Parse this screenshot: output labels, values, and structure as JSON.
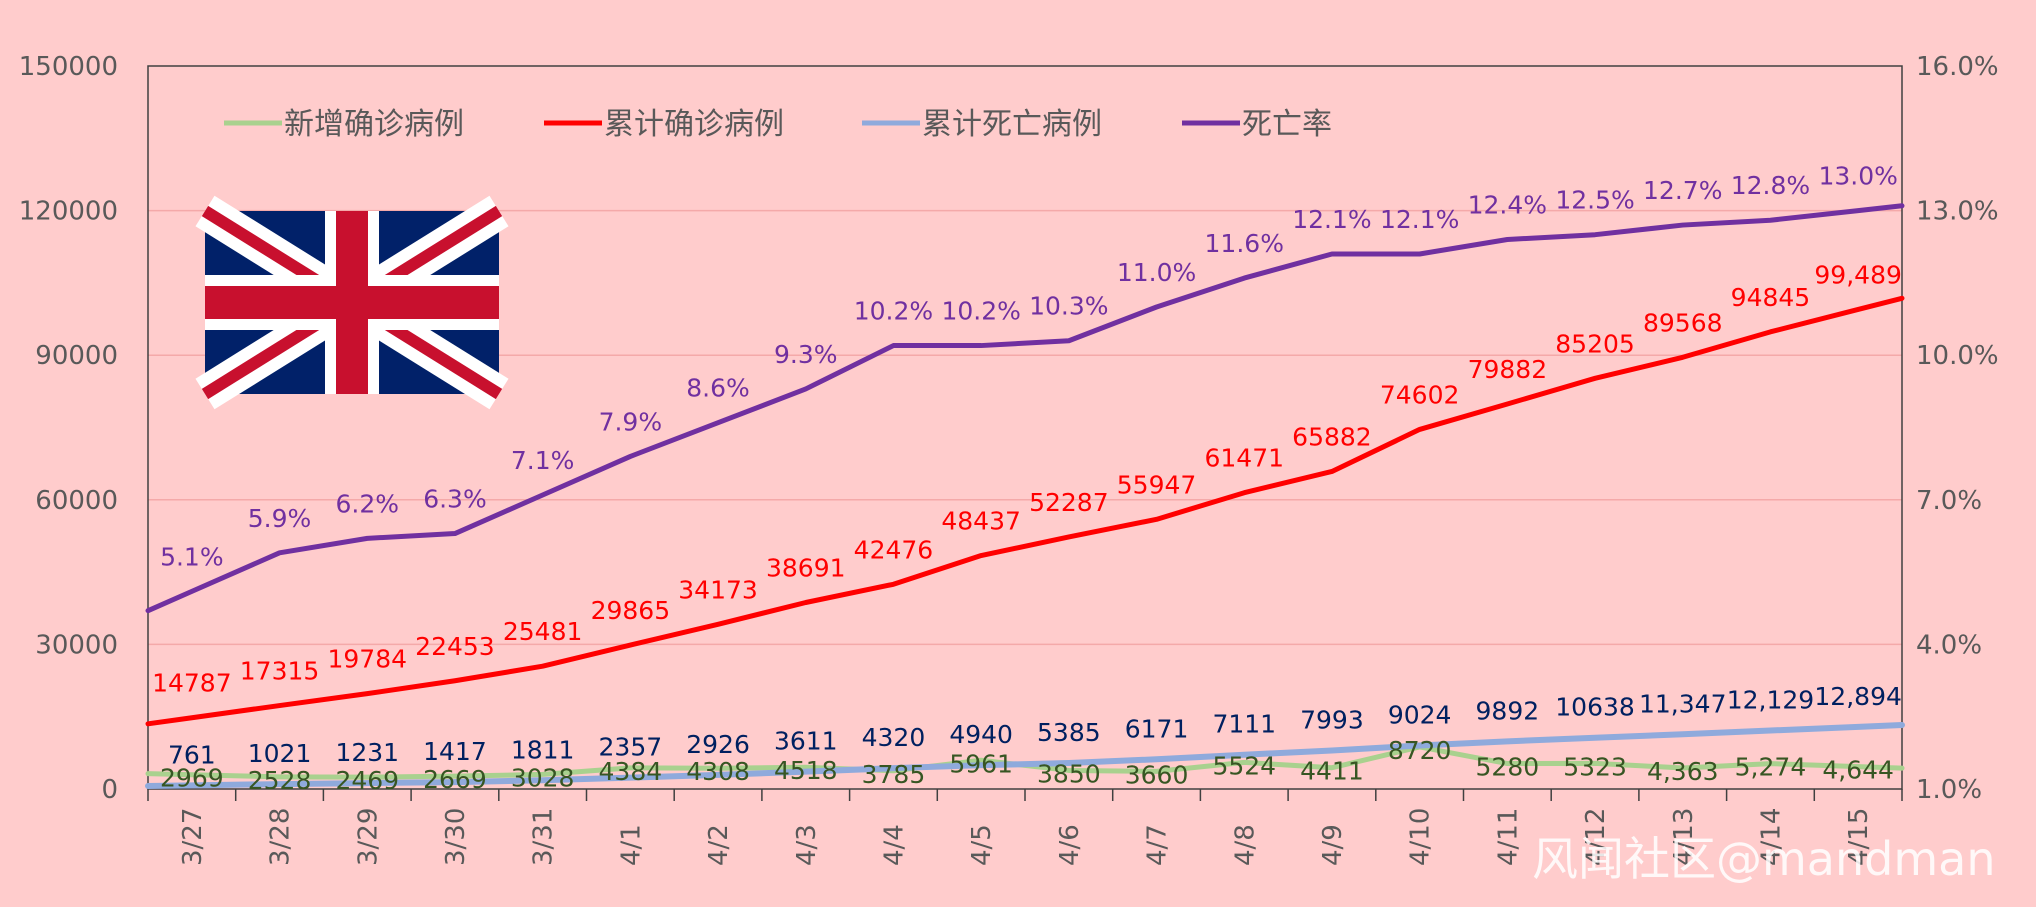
{
  "chart_data": {
    "type": "line",
    "categories": [
      "3/27",
      "3/28",
      "3/29",
      "3/30",
      "3/31",
      "4/1",
      "4/2",
      "4/3",
      "4/4",
      "4/5",
      "4/6",
      "4/7",
      "4/8",
      "4/9",
      "4/10",
      "4/11",
      "4/12",
      "4/13",
      "4/14",
      "4/15"
    ],
    "y_left": {
      "ylim": [
        0,
        150000
      ],
      "ticks": [
        "0",
        "30000",
        "60000",
        "90000",
        "120000",
        "150000"
      ],
      "tick_values": [
        0,
        30000,
        60000,
        90000,
        120000,
        150000
      ]
    },
    "y_right": {
      "ylim": [
        1.0,
        16.0
      ],
      "ticks": [
        "1.0%",
        "4.0%",
        "7.0%",
        "10.0%",
        "13.0%",
        "16.0%"
      ],
      "tick_values": [
        1,
        4,
        7,
        10,
        13,
        16
      ]
    },
    "legend": {
      "placement": "top-left"
    },
    "series": [
      {
        "name": "新增确诊病例",
        "axis": "left",
        "color": "#a9d18e",
        "label_color": "#375623",
        "values": [
          2969,
          2528,
          2469,
          2669,
          3028,
          4384,
          4308,
          4518,
          3785,
          5961,
          3850,
          3660,
          5524,
          4411,
          8720,
          5280,
          5323,
          4363,
          5274,
          4644
        ],
        "labels": [
          "2969",
          "2528",
          "2469",
          "2669",
          "3028",
          "4384",
          "4308",
          "4518",
          "3785",
          "5961",
          "3850",
          "3660",
          "5524",
          "4411",
          "8720",
          "5280",
          "5323",
          "4,363",
          "5,274",
          "4,644"
        ]
      },
      {
        "name": "累计确诊病例",
        "axis": "left",
        "color": "#ff0000",
        "label_color": "#ff0000",
        "values": [
          14787,
          17315,
          19784,
          22453,
          25481,
          29865,
          34173,
          38691,
          42476,
          48437,
          52287,
          55947,
          61471,
          65882,
          74602,
          79882,
          85205,
          89568,
          94845,
          99489
        ],
        "labels": [
          "14787",
          "17315",
          "19784",
          "22453",
          "25481",
          "29865",
          "34173",
          "38691",
          "42476",
          "48437",
          "52287",
          "55947",
          "61471",
          "65882",
          "74602",
          "79882",
          "85205",
          "89568",
          "94845",
          "99,489"
        ]
      },
      {
        "name": "累计死亡病例",
        "axis": "left",
        "color": "#8faadc",
        "label_color": "#002060",
        "values": [
          761,
          1021,
          1231,
          1417,
          1811,
          2357,
          2926,
          3611,
          4320,
          4940,
          5385,
          6171,
          7111,
          7993,
          9024,
          9892,
          10638,
          11347,
          12129,
          12894
        ],
        "labels": [
          "761",
          "1021",
          "1231",
          "1417",
          "1811",
          "2357",
          "2926",
          "3611",
          "4320",
          "4940",
          "5385",
          "6171",
          "7111",
          "7993",
          "9024",
          "9892",
          "10638",
          "11,347",
          "12,129",
          "12,894"
        ]
      },
      {
        "name": "死亡率",
        "axis": "right",
        "color": "#7030a0",
        "label_color": "#7030a0",
        "values": [
          5.1,
          5.9,
          6.2,
          6.3,
          7.1,
          7.9,
          8.6,
          9.3,
          10.2,
          10.2,
          10.3,
          11.0,
          11.6,
          12.1,
          12.1,
          12.4,
          12.5,
          12.7,
          12.8,
          13.0
        ],
        "labels": [
          "5.1%",
          "5.9%",
          "6.2%",
          "6.3%",
          "7.1%",
          "7.9%",
          "8.6%",
          "9.3%",
          "10.2%",
          "10.2%",
          "10.3%",
          "11.0%",
          "11.6%",
          "12.1%",
          "12.1%",
          "12.4%",
          "12.5%",
          "12.7%",
          "12.8%",
          "13.0%"
        ]
      }
    ]
  },
  "watermark": "风闻社区@mandman",
  "flag": {
    "icon": "union-jack-flag"
  }
}
